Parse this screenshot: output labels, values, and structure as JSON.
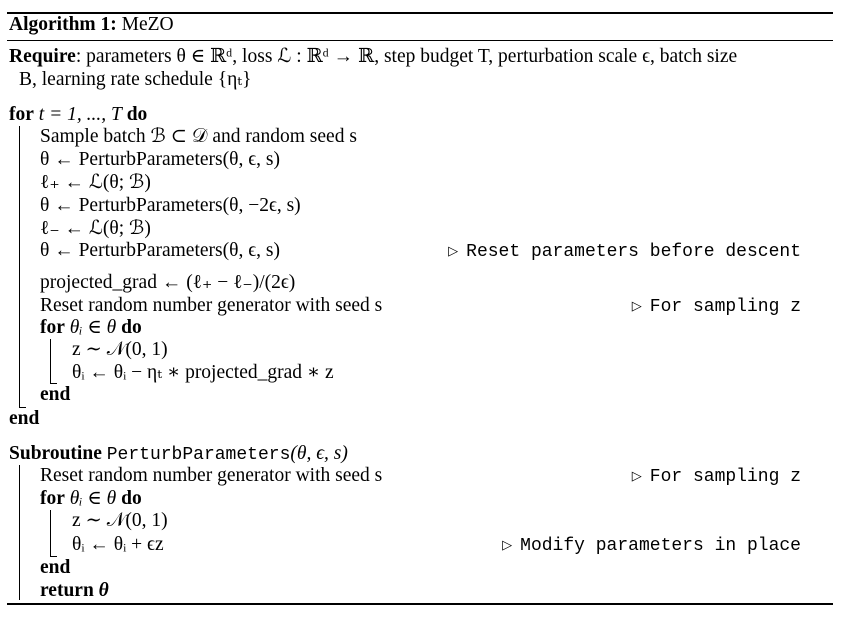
{
  "algorithm": {
    "label": "Algorithm 1:",
    "name": "MeZO"
  },
  "require": {
    "keyword": "Require",
    "line1": ": parameters θ ∈ ℝᵈ, loss ℒ : ℝᵈ → ℝ, step budget T, perturbation scale ϵ, batch size",
    "line2": "B, learning rate schedule {ηₜ}"
  },
  "main_loop": {
    "for_keyword": "for",
    "for_header": "t = 1, ..., T",
    "do_keyword": "do",
    "body": [
      "Sample batch ℬ ⊂ 𝒟 and random seed s",
      "θ ← PerturbParameters(θ, ϵ, s)",
      "ℓ₊ ← ℒ(θ; ℬ)",
      "θ ← PerturbParameters(θ, −2ϵ, s)",
      "ℓ₋ ← ℒ(θ; ℬ)",
      "θ ← PerturbParameters(θ, ϵ, s)",
      "projected_grad ← (ℓ₊ − ℓ₋)/(2ϵ)",
      "Reset random number generator with seed s"
    ],
    "comment_reset": "Reset parameters before descent",
    "comment_sampling": "For sampling z",
    "inner_for_header": "θᵢ ∈ θ",
    "inner_body": [
      "z ∼ 𝒩(0, 1)",
      "θᵢ ← θᵢ − ηₜ ∗ projected_grad ∗ z"
    ],
    "end_keyword": "end"
  },
  "subroutine": {
    "keyword": "Subroutine",
    "name": "PerturbParameters",
    "args": "(θ, ϵ, s)",
    "body_reset": "Reset random number generator with seed s",
    "comment_sampling": "For sampling z",
    "inner_for_header": "θᵢ ∈ θ",
    "inner_body": [
      "z ∼ 𝒩(0, 1)",
      "θᵢ ← θᵢ + ϵz"
    ],
    "comment_modify": "Modify parameters in place",
    "return_keyword": "return",
    "return_value": "θ"
  }
}
